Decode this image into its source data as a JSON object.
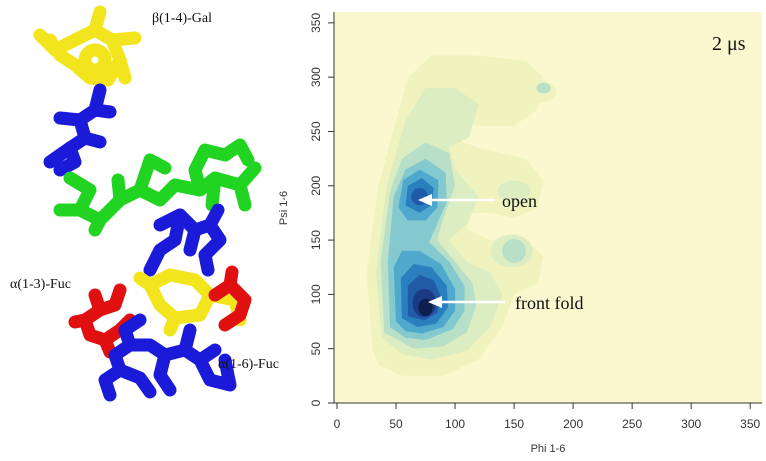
{
  "molecule": {
    "labels": {
      "gal": "β(1-4)-Gal",
      "fuc13": "α(1-3)-Fuc",
      "fuc16": "α(1-6)-Fuc"
    },
    "colors": {
      "yellow": "#f2e51d",
      "blue": "#1a1ad8",
      "green": "#22d422",
      "red": "#e01010"
    }
  },
  "chart_data": {
    "type": "contour",
    "xlabel": "Phi 1-6",
    "ylabel": "Psi 1-6",
    "xlim": [
      0,
      360
    ],
    "ylim": [
      0,
      360
    ],
    "xticks": [
      0,
      50,
      100,
      150,
      200,
      250,
      300,
      350
    ],
    "yticks": [
      0,
      50,
      100,
      150,
      200,
      250,
      300,
      350
    ],
    "time_label": "2 μs",
    "background_color": "#fbf8cf",
    "contour_colors": [
      "#f1f3bf",
      "#dcedc2",
      "#b8dfc8",
      "#84c9cf",
      "#4ea9cc",
      "#2a7fbf",
      "#215aa6",
      "#1c3a84",
      "#0d1f4e"
    ],
    "annotations": [
      {
        "text": "open",
        "arrow_to": [
          70,
          188
        ]
      },
      {
        "text": "front fold",
        "arrow_to": [
          75,
          85
        ]
      }
    ]
  }
}
